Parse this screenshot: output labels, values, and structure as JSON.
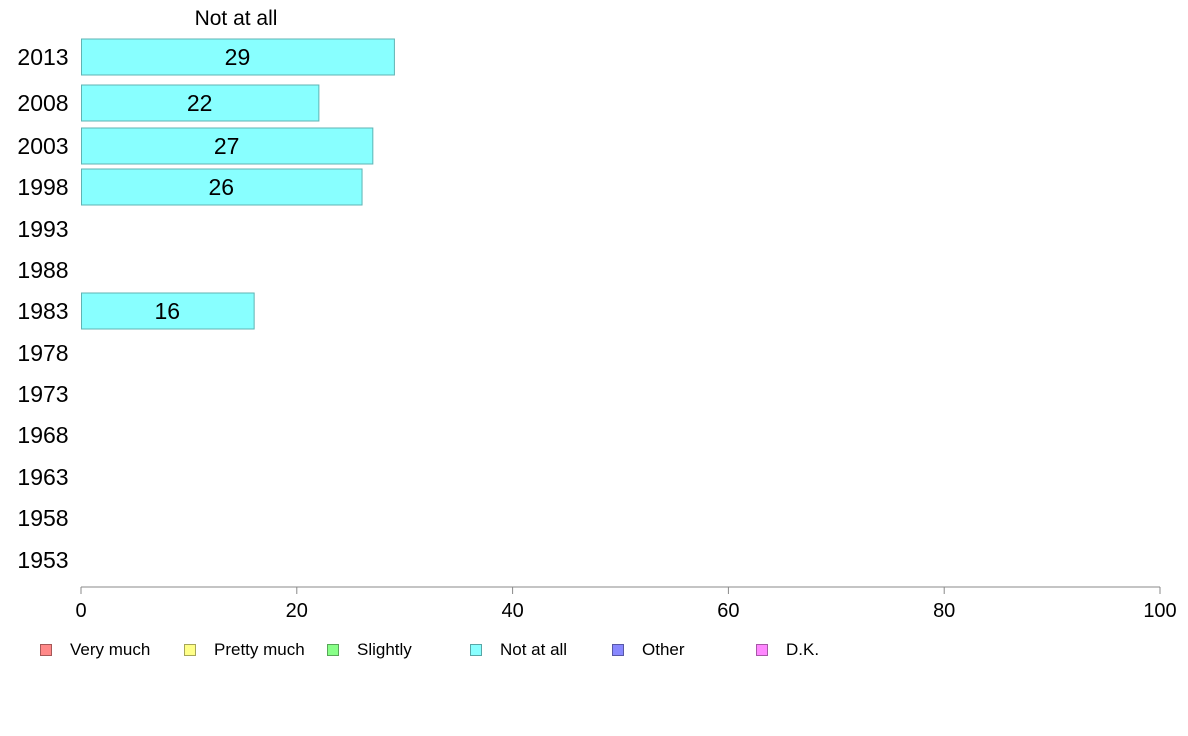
{
  "chart_data": {
    "type": "bar",
    "orientation": "horizontal",
    "title": "Not at all",
    "categories": [
      "2013",
      "2008",
      "2003",
      "1998",
      "1993",
      "1988",
      "1983",
      "1978",
      "1973",
      "1968",
      "1963",
      "1958",
      "1953"
    ],
    "series": [
      {
        "name": "Not at all",
        "color": "#88ffff",
        "values": [
          29,
          22,
          27,
          26,
          null,
          null,
          16,
          null,
          null,
          null,
          null,
          null,
          null
        ]
      }
    ],
    "xlim": [
      0,
      100
    ],
    "xticks": [
      0,
      20,
      40,
      60,
      80,
      100
    ],
    "grid": false,
    "legend": {
      "position": "bottom",
      "items": [
        {
          "label": "Very much",
          "color": "#ff8888"
        },
        {
          "label": "Pretty much",
          "color": "#ffff88"
        },
        {
          "label": "Slightly",
          "color": "#88ff88"
        },
        {
          "label": "Not at all",
          "color": "#88ffff"
        },
        {
          "label": "Other",
          "color": "#8888ff"
        },
        {
          "label": "D.K.",
          "color": "#ff88ff"
        }
      ]
    }
  }
}
